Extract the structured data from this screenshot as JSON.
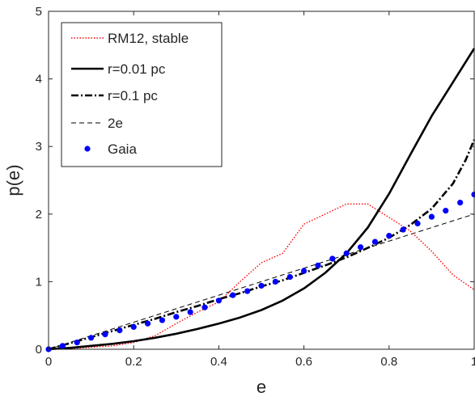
{
  "chart_data": {
    "type": "line",
    "title": "",
    "xlabel": "e",
    "ylabel": "p(e)",
    "xlim": [
      0,
      1
    ],
    "ylim": [
      0,
      5
    ],
    "xticks": [
      0,
      0.2,
      0.4,
      0.6,
      0.8,
      1
    ],
    "xtick_labels": [
      "0",
      "0.2",
      "0.4",
      "0.6",
      "0.8",
      "1"
    ],
    "yticks": [
      0,
      1,
      2,
      3,
      4,
      5
    ],
    "ytick_labels": [
      "0",
      "1",
      "2",
      "3",
      "4",
      "5"
    ],
    "grid": false,
    "legend_position": "top-left",
    "series": [
      {
        "name": "RM12, stable",
        "style": "dotted",
        "color": "#ff0000",
        "x": [
          0,
          0.05,
          0.1,
          0.15,
          0.2,
          0.25,
          0.3,
          0.35,
          0.4,
          0.45,
          0.5,
          0.55,
          0.6,
          0.65,
          0.7,
          0.75,
          0.8,
          0.85,
          0.9,
          0.95,
          1.0
        ],
        "y": [
          0,
          0.01,
          0.03,
          0.05,
          0.1,
          0.2,
          0.38,
          0.55,
          0.7,
          1.0,
          1.28,
          1.42,
          1.85,
          2.0,
          2.15,
          2.15,
          1.95,
          1.75,
          1.45,
          1.1,
          0.88
        ]
      },
      {
        "name": "r=0.01 pc",
        "style": "solid",
        "color": "#000000",
        "x": [
          0,
          0.05,
          0.1,
          0.15,
          0.2,
          0.25,
          0.3,
          0.35,
          0.4,
          0.45,
          0.5,
          0.55,
          0.6,
          0.65,
          0.7,
          0.75,
          0.8,
          0.85,
          0.9,
          0.95,
          1.0
        ],
        "y": [
          0,
          0.02,
          0.05,
          0.08,
          0.12,
          0.17,
          0.23,
          0.3,
          0.38,
          0.47,
          0.58,
          0.72,
          0.9,
          1.13,
          1.42,
          1.8,
          2.3,
          2.88,
          3.45,
          3.95,
          4.45
        ]
      },
      {
        "name": "r=0.1 pc",
        "style": "dashdot",
        "color": "#000000",
        "x": [
          0,
          0.05,
          0.1,
          0.15,
          0.2,
          0.25,
          0.3,
          0.35,
          0.4,
          0.45,
          0.5,
          0.55,
          0.6,
          0.65,
          0.7,
          0.75,
          0.8,
          0.85,
          0.9,
          0.95,
          0.98,
          1.0
        ],
        "y": [
          0,
          0.09,
          0.18,
          0.27,
          0.36,
          0.45,
          0.55,
          0.64,
          0.74,
          0.83,
          0.93,
          1.02,
          1.13,
          1.24,
          1.36,
          1.5,
          1.65,
          1.84,
          2.08,
          2.45,
          2.8,
          3.1
        ]
      },
      {
        "name": "2e",
        "style": "dashed",
        "color": "#000000",
        "x": [
          0,
          1
        ],
        "y": [
          0,
          2
        ]
      },
      {
        "name": "Gaia",
        "style": "markers",
        "color": "#0000ff",
        "x": [
          0,
          0.033,
          0.067,
          0.1,
          0.133,
          0.167,
          0.2,
          0.233,
          0.267,
          0.3,
          0.333,
          0.367,
          0.4,
          0.433,
          0.467,
          0.5,
          0.533,
          0.567,
          0.6,
          0.633,
          0.667,
          0.7,
          0.733,
          0.767,
          0.8,
          0.833,
          0.867,
          0.9,
          0.933,
          0.967,
          1.0
        ],
        "y": [
          0,
          0.05,
          0.1,
          0.17,
          0.22,
          0.28,
          0.33,
          0.38,
          0.43,
          0.48,
          0.55,
          0.62,
          0.72,
          0.8,
          0.86,
          0.94,
          1.0,
          1.07,
          1.16,
          1.24,
          1.34,
          1.42,
          1.51,
          1.59,
          1.68,
          1.77,
          1.86,
          1.96,
          2.05,
          2.17,
          2.29
        ]
      }
    ]
  }
}
